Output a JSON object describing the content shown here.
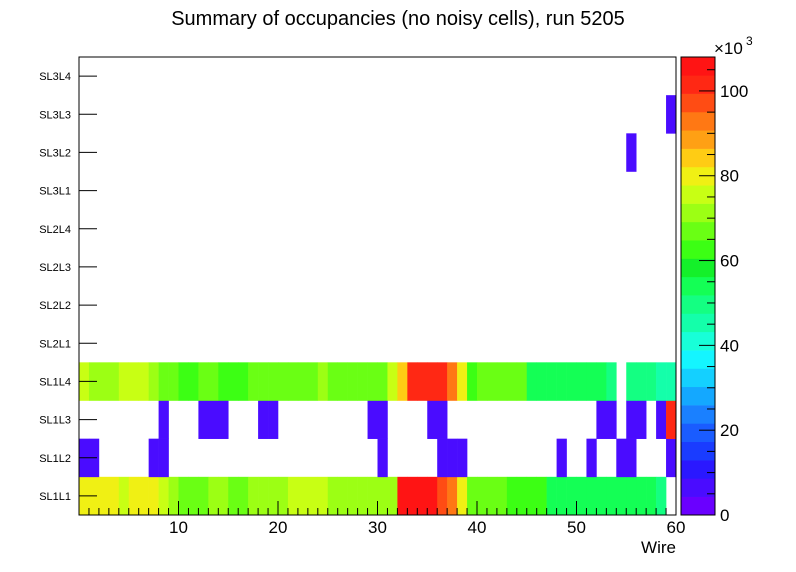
{
  "chart_data": {
    "type": "heatmap",
    "title": "Summary of occupancies (no noisy cells), run 5205",
    "xlabel": "Wire",
    "ylabel": "",
    "xlim": [
      0,
      60
    ],
    "x_ticks": [
      10,
      20,
      30,
      40,
      50,
      60
    ],
    "layers": [
      "SL1L1",
      "SL1L2",
      "SL1L3",
      "SL1L4",
      "SL2L1",
      "SL2L2",
      "SL2L3",
      "SL2L4",
      "SL3L1",
      "SL3L2",
      "SL3L3",
      "SL3L4"
    ],
    "z_range": [
      0,
      108000
    ],
    "z_ticks": [
      0,
      20,
      40,
      60,
      80,
      100
    ],
    "z_exponent_label": "×10",
    "z_exponent": "3",
    "rows": {
      "SL1L1": [
        80,
        80,
        80,
        80,
        77,
        82,
        82,
        82,
        77,
        72,
        65,
        65,
        65,
        70,
        70,
        65,
        65,
        72,
        72,
        72,
        72,
        74,
        74,
        74,
        74,
        72,
        72,
        72,
        72,
        72,
        72,
        72,
        105,
        105,
        105,
        105,
        98,
        92,
        82,
        65,
        65,
        65,
        65,
        62,
        62,
        62,
        62,
        55,
        55,
        55,
        55,
        55,
        55,
        55,
        55,
        55,
        55,
        55,
        50,
        0
      ],
      "SL1L2": [
        5,
        5,
        0,
        0,
        0,
        0,
        0,
        5,
        5,
        0,
        0,
        0,
        0,
        0,
        0,
        0,
        0,
        0,
        0,
        0,
        0,
        0,
        0,
        0,
        0,
        0,
        0,
        0,
        0,
        0,
        5,
        0,
        0,
        0,
        0,
        0,
        5,
        5,
        5,
        0,
        0,
        0,
        0,
        0,
        0,
        0,
        0,
        0,
        5,
        0,
        0,
        5,
        0,
        0,
        5,
        5,
        0,
        0,
        0,
        5
      ],
      "SL1L3": [
        0,
        0,
        0,
        0,
        0,
        0,
        0,
        0,
        5,
        0,
        0,
        0,
        5,
        5,
        5,
        0,
        0,
        0,
        5,
        5,
        0,
        0,
        0,
        0,
        0,
        0,
        0,
        0,
        0,
        5,
        5,
        0,
        0,
        0,
        0,
        5,
        5,
        0,
        0,
        0,
        0,
        0,
        0,
        0,
        0,
        0,
        0,
        0,
        0,
        0,
        0,
        0,
        5,
        5,
        0,
        5,
        5,
        0,
        5,
        102
      ],
      "SL1L4": [
        75,
        72,
        72,
        72,
        75,
        75,
        75,
        72,
        65,
        65,
        62,
        62,
        65,
        65,
        62,
        62,
        62,
        65,
        65,
        65,
        65,
        65,
        65,
        65,
        70,
        65,
        65,
        65,
        65,
        65,
        65,
        75,
        85,
        100,
        102,
        102,
        102,
        95,
        82,
        62,
        65,
        65,
        65,
        65,
        65,
        55,
        55,
        55,
        52,
        52,
        55,
        55,
        55,
        50,
        0,
        50,
        50,
        50,
        45,
        45
      ],
      "SL2L1": [],
      "SL2L2": [],
      "SL2L3": [],
      "SL2L4": [],
      "SL3L1": [],
      "SL3L2": [
        0,
        0,
        0,
        0,
        0,
        0,
        0,
        0,
        0,
        0,
        0,
        0,
        0,
        0,
        0,
        0,
        0,
        0,
        0,
        0,
        0,
        0,
        0,
        0,
        0,
        0,
        0,
        0,
        0,
        0,
        0,
        0,
        0,
        0,
        0,
        0,
        0,
        0,
        0,
        0,
        0,
        0,
        0,
        0,
        0,
        0,
        0,
        0,
        0,
        0,
        0,
        0,
        0,
        0,
        0,
        5,
        0,
        0,
        0,
        0
      ],
      "SL3L3": [
        0,
        0,
        0,
        0,
        0,
        0,
        0,
        0,
        0,
        0,
        0,
        0,
        0,
        0,
        0,
        0,
        0,
        0,
        0,
        0,
        0,
        0,
        0,
        0,
        0,
        0,
        0,
        0,
        0,
        0,
        0,
        0,
        0,
        0,
        0,
        0,
        0,
        0,
        0,
        0,
        0,
        0,
        0,
        0,
        0,
        0,
        0,
        0,
        0,
        0,
        0,
        0,
        0,
        0,
        0,
        0,
        0,
        0,
        0,
        5
      ],
      "SL3L4": []
    },
    "row_values_unit": "thousands",
    "palette": [
      "#6a00ff",
      "#4a0cff",
      "#2a18ff",
      "#1a3cff",
      "#1a5cff",
      "#1a80ff",
      "#14a8ff",
      "#14d0ff",
      "#14f5ff",
      "#18ffd8",
      "#14ffaa",
      "#14ff82",
      "#14ff55",
      "#14f02a",
      "#3cff14",
      "#6aff14",
      "#9cff14",
      "#c8ff14",
      "#f0f014",
      "#ffcc14",
      "#ffa014",
      "#ff7814",
      "#ff4c14",
      "#ff2814",
      "#ff1414"
    ]
  }
}
